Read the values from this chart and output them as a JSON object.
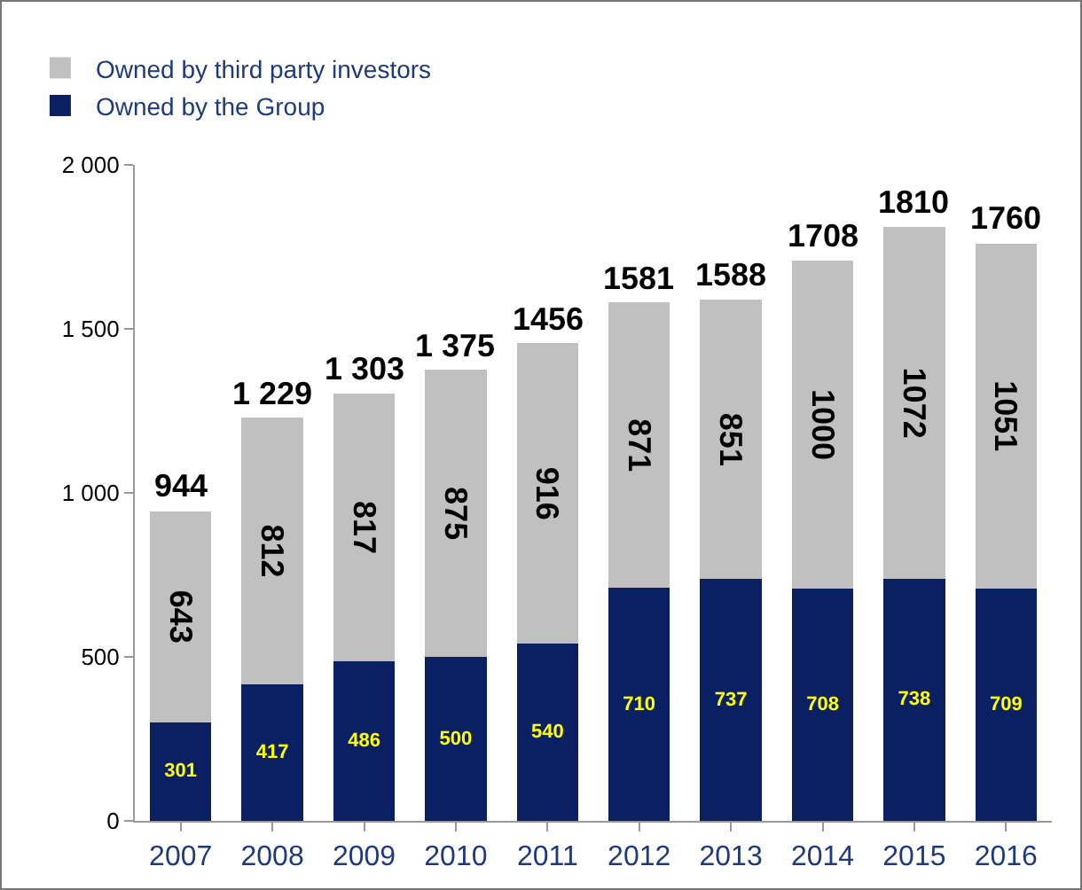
{
  "chart_data": {
    "type": "bar",
    "stacked": true,
    "categories": [
      "2007",
      "2008",
      "2009",
      "2010",
      "2011",
      "2012",
      "2013",
      "2014",
      "2015",
      "2016"
    ],
    "series": [
      {
        "name": "Owned by the Group",
        "color": "#0b1f63",
        "values": [
          301,
          417,
          486,
          500,
          540,
          710,
          737,
          708,
          738,
          709
        ]
      },
      {
        "name": "Owned by third party investors",
        "color": "#c0c0c0",
        "values": [
          643,
          812,
          817,
          875,
          916,
          871,
          851,
          1000,
          1072,
          1051
        ]
      }
    ],
    "ylim": [
      0,
      2000
    ],
    "yticks": [
      0,
      500,
      {
        "value": 1000,
        "label": "1 000"
      },
      {
        "value": 1500,
        "label": "1 500"
      },
      {
        "value": 2000,
        "label": "2 000"
      }
    ],
    "data_labels": true,
    "totals": [
      "944",
      "1 229",
      "1 303",
      "1 375",
      "1456",
      "1581",
      "1588",
      "1708",
      "1810",
      "1760"
    ],
    "grid": false,
    "legend": "top left"
  }
}
